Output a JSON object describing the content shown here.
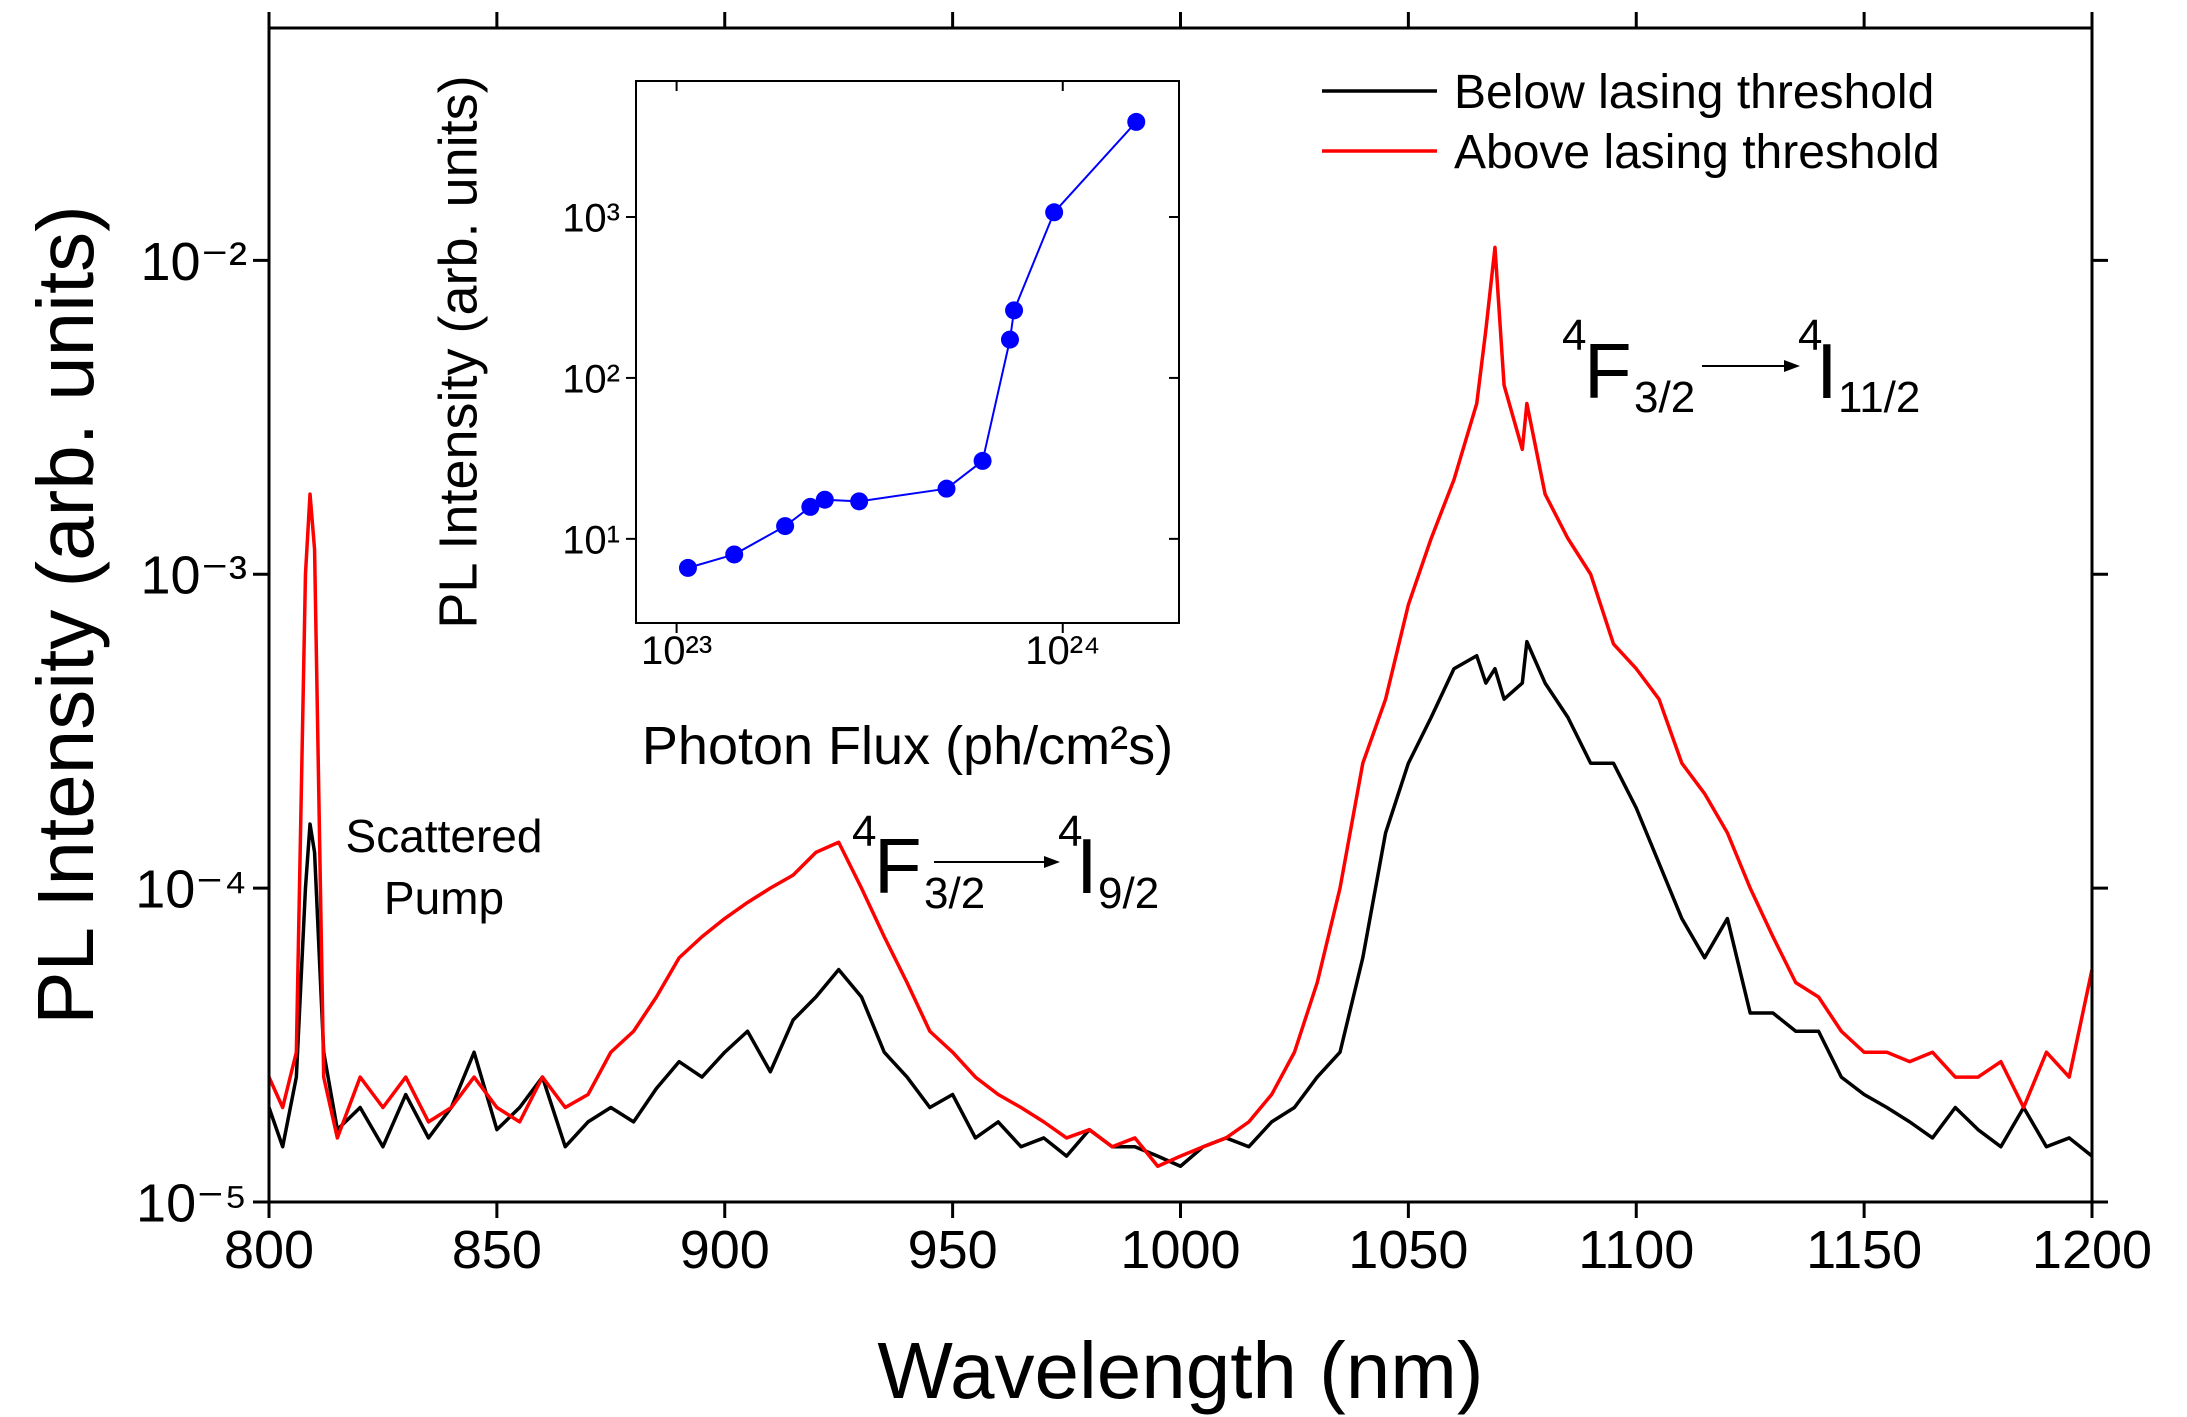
{
  "chart_data": [
    {
      "type": "line",
      "xlabel": "Wavelength (nm)",
      "ylabel": "PL Intensity (arb. units)",
      "x": [
        800,
        803,
        806,
        808,
        809,
        810,
        812,
        815,
        820,
        825,
        830,
        835,
        840,
        845,
        850,
        855,
        860,
        865,
        870,
        875,
        880,
        885,
        890,
        895,
        900,
        905,
        910,
        915,
        920,
        925,
        930,
        935,
        940,
        945,
        950,
        955,
        960,
        965,
        970,
        975,
        980,
        985,
        990,
        995,
        1000,
        1005,
        1010,
        1015,
        1020,
        1025,
        1030,
        1035,
        1040,
        1045,
        1050,
        1055,
        1060,
        1065,
        1067,
        1069,
        1071,
        1075,
        1076,
        1080,
        1085,
        1090,
        1095,
        1100,
        1105,
        1110,
        1115,
        1120,
        1125,
        1130,
        1135,
        1140,
        1145,
        1150,
        1155,
        1160,
        1165,
        1170,
        1175,
        1180,
        1185,
        1190,
        1195,
        1200
      ],
      "series": [
        {
          "name": "Below lasing threshold",
          "color": "#000000",
          "values": [
            2e-05,
            1.5e-05,
            2.5e-05,
            0.0001,
            0.00016,
            0.00013,
            3e-05,
            1.7e-05,
            2e-05,
            1.5e-05,
            2.2e-05,
            1.6e-05,
            2e-05,
            3e-05,
            1.7e-05,
            2e-05,
            2.5e-05,
            1.5e-05,
            1.8e-05,
            2e-05,
            1.8e-05,
            2.3e-05,
            2.8e-05,
            2.5e-05,
            3e-05,
            3.5e-05,
            2.6e-05,
            3.8e-05,
            4.5e-05,
            5.5e-05,
            4.5e-05,
            3e-05,
            2.5e-05,
            2e-05,
            2.2e-05,
            1.6e-05,
            1.8e-05,
            1.5e-05,
            1.6e-05,
            1.4e-05,
            1.7e-05,
            1.5e-05,
            1.5e-05,
            1.4e-05,
            1.3e-05,
            1.5e-05,
            1.6e-05,
            1.5e-05,
            1.8e-05,
            2e-05,
            2.5e-05,
            3e-05,
            6e-05,
            0.00015,
            0.00025,
            0.00035,
            0.0005,
            0.00055,
            0.00045,
            0.0005,
            0.0004,
            0.00045,
            0.00061,
            0.00045,
            0.00035,
            0.00025,
            0.00025,
            0.00018,
            0.00012,
            8e-05,
            6e-05,
            8e-05,
            4e-05,
            4e-05,
            3.5e-05,
            3.5e-05,
            2.5e-05,
            2.2e-05,
            2e-05,
            1.8e-05,
            1.6e-05,
            2e-05,
            1.7e-05,
            1.5e-05,
            2e-05,
            1.5e-05,
            1.6e-05,
            1.4e-05
          ]
        },
        {
          "name": "Above lasing threshold",
          "color": "#ff0000",
          "values": [
            2.5e-05,
            2e-05,
            3e-05,
            0.001,
            0.0018,
            0.0012,
            2.5e-05,
            1.6e-05,
            2.5e-05,
            2e-05,
            2.5e-05,
            1.8e-05,
            2e-05,
            2.5e-05,
            2e-05,
            1.8e-05,
            2.5e-05,
            2e-05,
            2.2e-05,
            3e-05,
            3.5e-05,
            4.5e-05,
            6e-05,
            7e-05,
            8e-05,
            9e-05,
            0.0001,
            0.00011,
            0.00013,
            0.00014,
            0.0001,
            7e-05,
            5e-05,
            3.5e-05,
            3e-05,
            2.5e-05,
            2.2e-05,
            2e-05,
            1.8e-05,
            1.6e-05,
            1.7e-05,
            1.5e-05,
            1.6e-05,
            1.3e-05,
            1.4e-05,
            1.5e-05,
            1.6e-05,
            1.8e-05,
            2.2e-05,
            3e-05,
            5e-05,
            0.0001,
            0.00025,
            0.0004,
            0.0008,
            0.0013,
            0.002,
            0.0035,
            0.006,
            0.011,
            0.004,
            0.0025,
            0.0035,
            0.0018,
            0.0013,
            0.001,
            0.0006,
            0.0005,
            0.0004,
            0.00025,
            0.0002,
            0.00015,
            0.0001,
            7e-05,
            5e-05,
            4.5e-05,
            3.5e-05,
            3e-05,
            3e-05,
            2.8e-05,
            3e-05,
            2.5e-05,
            2.5e-05,
            2.8e-05,
            2e-05,
            3e-05,
            2.5e-05,
            5.5e-05
          ]
        }
      ],
      "xlim": [
        800,
        1200
      ],
      "ylim": [
        1e-05,
        0.055
      ],
      "xticks": [
        800,
        850,
        900,
        950,
        1000,
        1050,
        1100,
        1150,
        1200
      ],
      "yticks": [
        {
          "value": 1e-05,
          "label": "10⁻⁵"
        },
        {
          "value": 0.0001,
          "label": "10⁻⁴"
        },
        {
          "value": 0.001,
          "label": "10⁻³"
        },
        {
          "value": 0.01,
          "label": "10⁻²"
        }
      ],
      "yscale": "log",
      "legend": "upper right",
      "annotations": {
        "pump": [
          "Scattered",
          "Pump"
        ],
        "transitions": [
          [
            "4",
            "F",
            "3/2",
            "4",
            "I",
            "9/2"
          ],
          [
            "4",
            "F",
            "3/2",
            "4",
            "I",
            "11/2"
          ]
        ]
      }
    },
    {
      "type": "line",
      "markers": true,
      "xlabel": "Photon Flux (ph/cm²s)",
      "ylabel": "PL Intensity (arb. units)",
      "x": [
        1.07e+23,
        1.41e+23,
        1.91e+23,
        2.22e+23,
        2.42e+23,
        2.97e+23,
        5e+23,
        6.2e+23,
        7.3e+23,
        7.48e+23,
        9.5e+23,
        1.55e+24
      ],
      "values": [
        6.6,
        8.0,
        12,
        15.8,
        17.5,
        17.1,
        20.5,
        30.5,
        173,
        263,
        1070,
        3900
      ],
      "color": "#0000ff",
      "xlim": [
        7.85e+22,
        2e+24
      ],
      "ylim": [
        3,
        7000
      ],
      "xscale": "log",
      "yscale": "log",
      "xticks": [
        {
          "value": 1e+23,
          "label": "10²³"
        },
        {
          "value": 1e+24,
          "label": "10²⁴"
        }
      ],
      "yticks": [
        {
          "value": 10,
          "label": "10¹"
        },
        {
          "value": 100,
          "label": "10²"
        },
        {
          "value": 1000,
          "label": "10³"
        }
      ]
    }
  ]
}
